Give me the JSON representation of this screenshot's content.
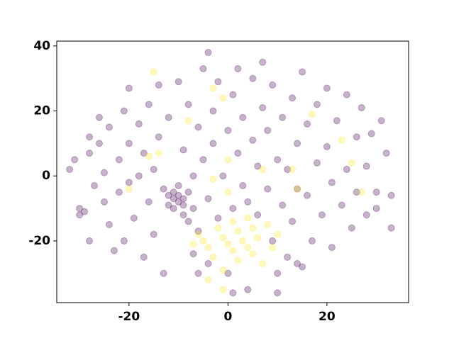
{
  "chart_data": {
    "type": "scatter",
    "xlim": [
      -34.6,
      36.5
    ],
    "ylim": [
      -39.0,
      41.5
    ],
    "xticks": [
      -20,
      0,
      20
    ],
    "yticks": [
      -20,
      0,
      20,
      40
    ],
    "series": [
      {
        "color": "#440154",
        "x": [
          -32,
          -31,
          -30,
          -29,
          -28,
          -28,
          -27,
          -26,
          -26,
          -25,
          -25,
          -24,
          -24,
          -23,
          -22,
          -22,
          -21,
          -21,
          -20,
          -20,
          -20,
          -19,
          -18,
          -18,
          -17,
          -17,
          -16,
          -16,
          -15,
          -15,
          -14,
          -14,
          -13,
          -13,
          -12,
          -12,
          -12,
          -11,
          -11,
          -11,
          -10,
          -10,
          -10,
          -10,
          -9,
          -9,
          -9,
          -9,
          -8,
          -8,
          -8,
          -7,
          -7,
          -7,
          -6,
          -6,
          -5,
          -5,
          -4,
          -4,
          -4,
          -3,
          -3,
          -2,
          -2,
          -1,
          0,
          0,
          1,
          1,
          2,
          2,
          3,
          3,
          4,
          4,
          5,
          5,
          6,
          6,
          7,
          7,
          8,
          8,
          9,
          9,
          10,
          10,
          11,
          11,
          12,
          12,
          13,
          13,
          14,
          14,
          15,
          15,
          16,
          16,
          17,
          18,
          18,
          19,
          20,
          20,
          21,
          21,
          22,
          23,
          24,
          24,
          25,
          26,
          26,
          27,
          28,
          28,
          29,
          30,
          31,
          32,
          33,
          33,
          30,
          -30,
          -28,
          -6,
          1,
          14,
          10
        ],
        "y": [
          2,
          5,
          -10,
          -11,
          12,
          7,
          -3,
          18,
          10,
          -8,
          1,
          -15,
          15,
          -23,
          5,
          -5,
          20,
          -20,
          27,
          10,
          -2,
          -13,
          16,
          0,
          -25,
          7,
          -8,
          22,
          2,
          -18,
          28,
          12,
          -4,
          -30,
          -6,
          -9,
          18,
          -7,
          -5,
          -10,
          -8,
          -6,
          -3,
          29,
          -9,
          -7,
          -12,
          8,
          -5,
          -14,
          22,
          -10,
          0,
          -24,
          15,
          -17,
          5,
          33,
          -7,
          38,
          -27,
          20,
          10,
          -13,
          29,
          0,
          14,
          -30,
          -10,
          25,
          7,
          33,
          -3,
          18,
          -8,
          -35,
          30,
          11,
          3,
          -12,
          35,
          21,
          -4,
          14,
          -20,
          28,
          5,
          -30,
          18,
          -9,
          -25,
          2,
          24,
          -14,
          10,
          -4,
          32,
          -28,
          16,
          -6,
          -20,
          22,
          4,
          -12,
          27,
          9,
          -2,
          -22,
          17,
          -9,
          2,
          25,
          -16,
          12,
          -5,
          21,
          -12,
          3,
          13,
          -5,
          17,
          7,
          -6,
          -16,
          -10,
          -12,
          -20,
          -30,
          -36,
          -27,
          -36
        ]
      },
      {
        "color": "#fde725",
        "x": [
          -15,
          -8,
          -16,
          -14,
          -20,
          -3,
          -1,
          -3,
          0,
          7,
          0,
          -6,
          -5,
          -4,
          -3,
          -2,
          -1,
          0,
          1,
          1,
          2,
          2,
          3,
          4,
          4,
          5,
          5,
          6,
          7,
          8,
          9,
          -1,
          -4,
          -1,
          10,
          14,
          17,
          23,
          25,
          27,
          13,
          -7
        ],
        "y": [
          32,
          17,
          6,
          7,
          -4,
          27,
          24,
          -1,
          5,
          2,
          -5,
          -18,
          -20,
          -22,
          -25,
          -16,
          -19,
          -21,
          -14,
          -23,
          -17,
          -26,
          -20,
          -13,
          -22,
          -16,
          -24,
          -19,
          -27,
          -15,
          -22,
          -29,
          -32,
          -35,
          -18,
          -4,
          19,
          11,
          4,
          -5,
          2,
          -21
        ]
      }
    ]
  }
}
